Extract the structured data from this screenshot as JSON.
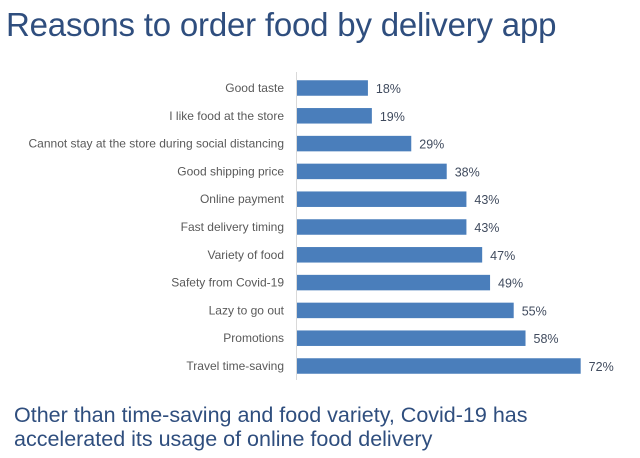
{
  "chart_data": {
    "type": "bar",
    "orientation": "horizontal",
    "title": "Reasons to order food by delivery app",
    "subtitle": "Other than time-saving and food variety, Covid-19 has accelerated its usage of online food delivery",
    "categories": [
      "Good taste",
      "I like food at the store",
      "Cannot stay at the store during social distancing",
      "Good shipping price",
      "Online payment",
      "Fast delivery timing",
      "Variety of food",
      "Safety from Covid-19",
      "Lazy to go out",
      "Promotions",
      "Travel time-saving"
    ],
    "values": [
      18,
      19,
      29,
      38,
      43,
      43,
      47,
      49,
      55,
      58,
      72
    ],
    "labels": [
      "18%",
      "19%",
      "29%",
      "38%",
      "43%",
      "43%",
      "47%",
      "49%",
      "55%",
      "58%",
      "72%"
    ],
    "unit": "%",
    "xlabel": "",
    "ylabel": "",
    "xlim": [
      0,
      80
    ],
    "grid": false,
    "legend": "none",
    "bar_color": "#4a7ebb",
    "axis_color": "#d9d9d9",
    "title_color": "#2f4e7e"
  }
}
